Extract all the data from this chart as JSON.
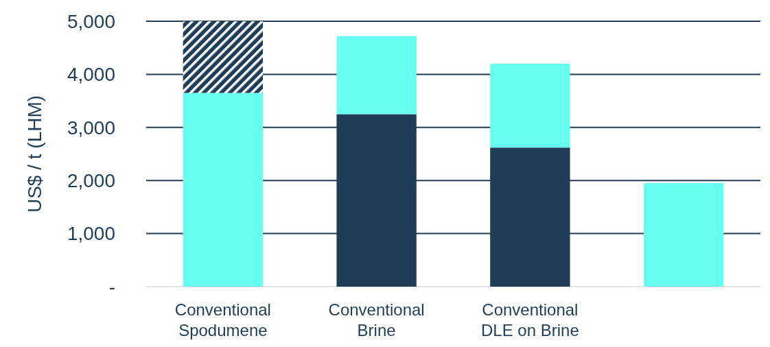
{
  "chart_data": {
    "type": "bar",
    "stacked": true,
    "ylabel": "US$ / t (LHM)",
    "categories": [
      "Conventional Spodumene",
      "Conventional Brine",
      "Conventional DLE on Brine",
      null
    ],
    "series": [
      {
        "color": "#1f3d56",
        "values": [
          null,
          3250,
          2620,
          null
        ]
      },
      {
        "color": "#66fff0",
        "values": [
          3650,
          1470,
          1580,
          1950
        ]
      },
      {
        "color": "#1f3d56",
        "values": [
          1350,
          null,
          null,
          null
        ]
      }
    ],
    "ylim": [
      0,
      5000
    ],
    "yticks": [
      {
        "value": 0,
        "label": "-"
      },
      {
        "value": 1000,
        "label": "1,000"
      },
      {
        "value": 2000,
        "label": "2,000"
      },
      {
        "value": 3000,
        "label": "3,000"
      },
      {
        "value": 4000,
        "label": "4,000"
      },
      {
        "value": 5000,
        "label": "5,000"
      }
    ],
    "grid": "y"
  }
}
